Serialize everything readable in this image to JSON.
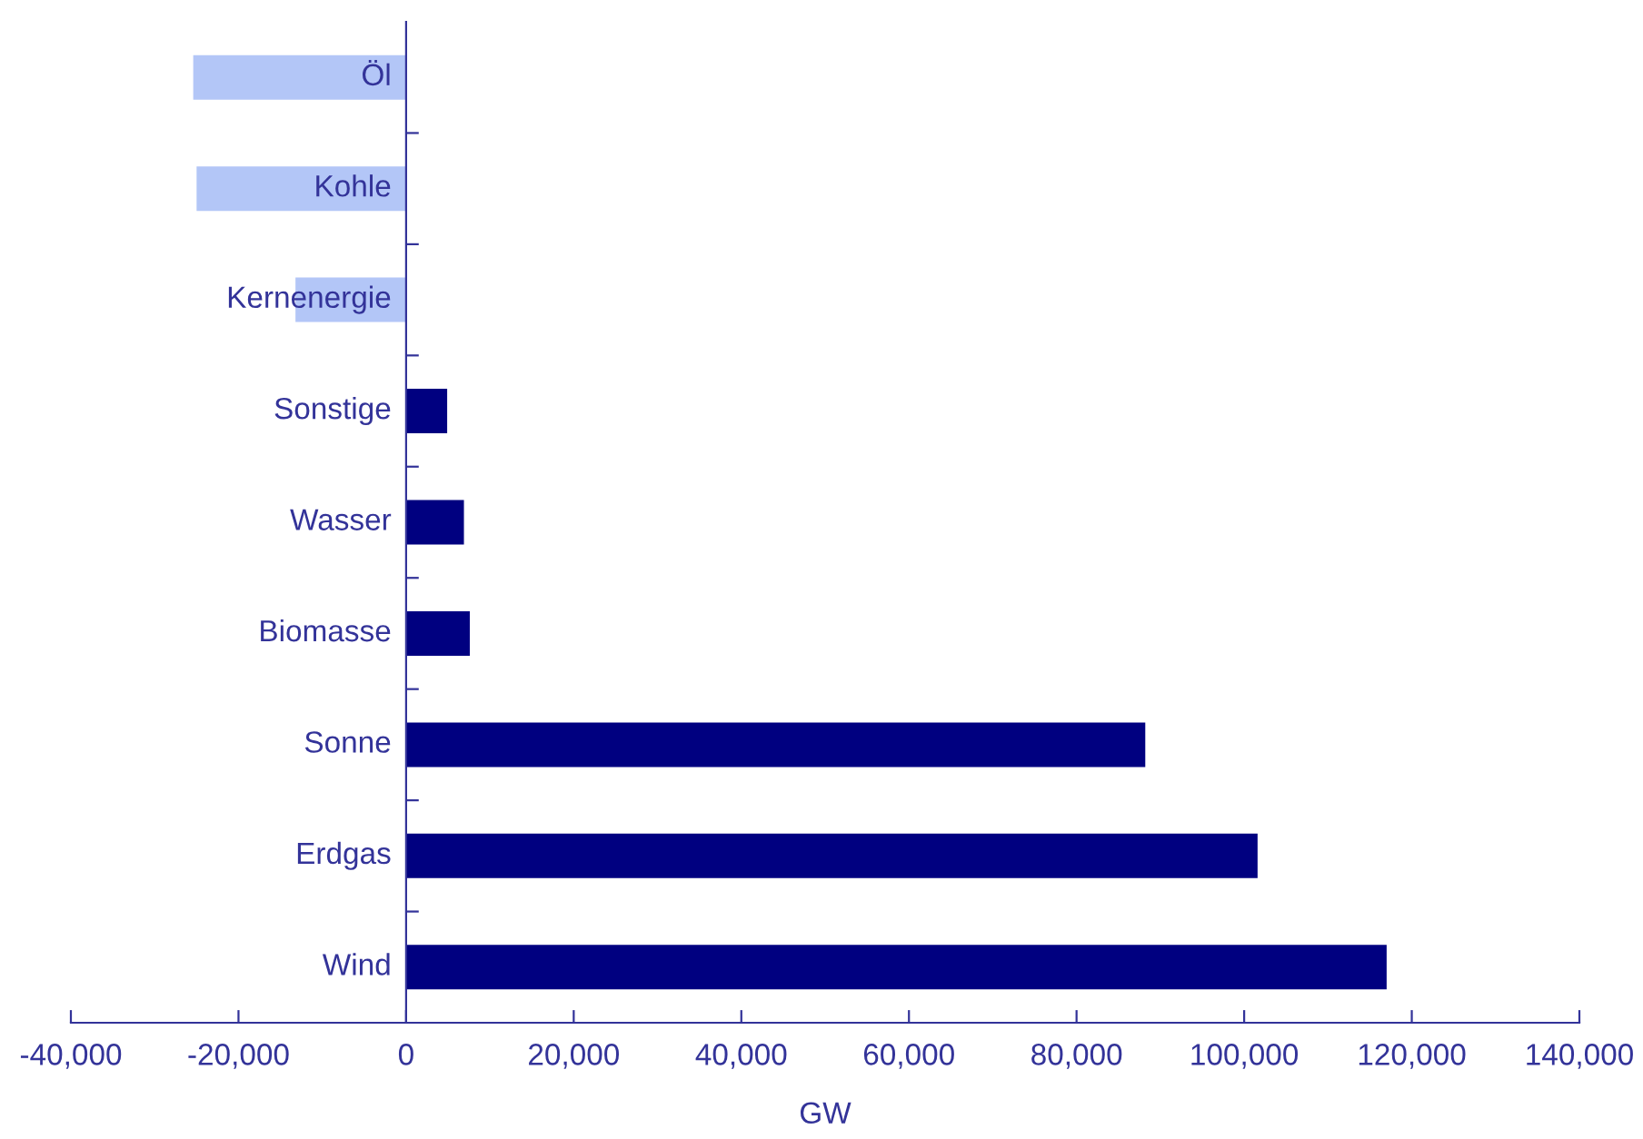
{
  "chart_data": {
    "type": "bar",
    "orientation": "horizontal",
    "xlabel": "GW",
    "categories": [
      "Öl",
      "Kohle",
      "Kernenergie",
      "Sonstige",
      "Wasser",
      "Biomasse",
      "Sonne",
      "Erdgas",
      "Wind"
    ],
    "values": [
      -25400,
      -25000,
      -13200,
      4900,
      6900,
      7600,
      88200,
      101600,
      117000
    ],
    "colors": [
      "#b3c6f7",
      "#b3c6f7",
      "#b3c6f7",
      "#000080",
      "#000080",
      "#000080",
      "#000080",
      "#000080",
      "#000080"
    ],
    "xlim": [
      -40000,
      140000
    ],
    "xticks": [
      {
        "value": -40000,
        "label": "-40,000"
      },
      {
        "value": -20000,
        "label": "-20,000"
      },
      {
        "value": 0,
        "label": "0"
      },
      {
        "value": 20000,
        "label": "20,000"
      },
      {
        "value": 40000,
        "label": "40,000"
      },
      {
        "value": 60000,
        "label": "60,000"
      },
      {
        "value": 80000,
        "label": "80,000"
      },
      {
        "value": 100000,
        "label": "100,000"
      },
      {
        "value": 120000,
        "label": "120,000"
      },
      {
        "value": 140000,
        "label": "140,000"
      }
    ],
    "grid": false,
    "legend": false
  }
}
